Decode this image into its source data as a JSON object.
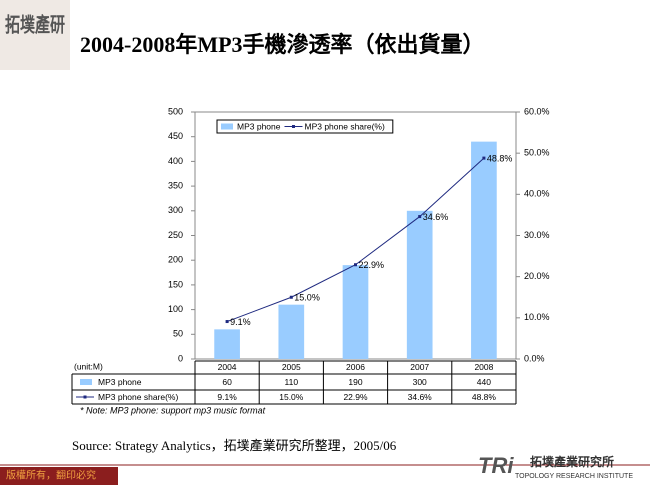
{
  "logo": "拓墣產研",
  "chart_data": {
    "type": "bar",
    "title": "2004-2008年MP3手機滲透率（依出貨量）",
    "unit_label": "(unit:M)",
    "categories": [
      "2004",
      "2005",
      "2006",
      "2007",
      "2008"
    ],
    "series": [
      {
        "name": "MP3 phone",
        "type": "bar",
        "color": "#99ccff",
        "values": [
          60,
          110,
          190,
          300,
          440
        ]
      },
      {
        "name": "MP3 phone share(%)",
        "type": "line",
        "axis": "y2",
        "color": "#1f2a80",
        "values": [
          9.1,
          15.0,
          22.9,
          34.6,
          48.8
        ],
        "value_labels": [
          "9.1%",
          "15.0%",
          "22.9%",
          "34.6%",
          "48.8%"
        ]
      }
    ],
    "ylim": [
      0,
      500
    ],
    "yticks": [
      0,
      50,
      100,
      150,
      200,
      250,
      300,
      350,
      400,
      450,
      500
    ],
    "y2lim": [
      0,
      60
    ],
    "y2ticks": [
      {
        "value": 0,
        "label": "0.0%"
      },
      {
        "value": 10,
        "label": "10.0%"
      },
      {
        "value": 20,
        "label": "20.0%"
      },
      {
        "value": 30,
        "label": "30.0%"
      },
      {
        "value": 40,
        "label": "40.0%"
      },
      {
        "value": 50,
        "label": "50.0%"
      },
      {
        "value": 60,
        "label": "60.0%"
      }
    ],
    "legend": "top-left",
    "note": "* Note: MP3 phone: support mp3 music format",
    "source": "Source: Strategy Analytics，拓墣產業研究所整理，2005/06"
  },
  "footer": {
    "copyright": "版權所有，翻印必究",
    "brand": "TRi",
    "brand_name": "拓墣產業研究所",
    "brand_english": "TOPOLOGY RESEARCH INSTITUTE"
  }
}
